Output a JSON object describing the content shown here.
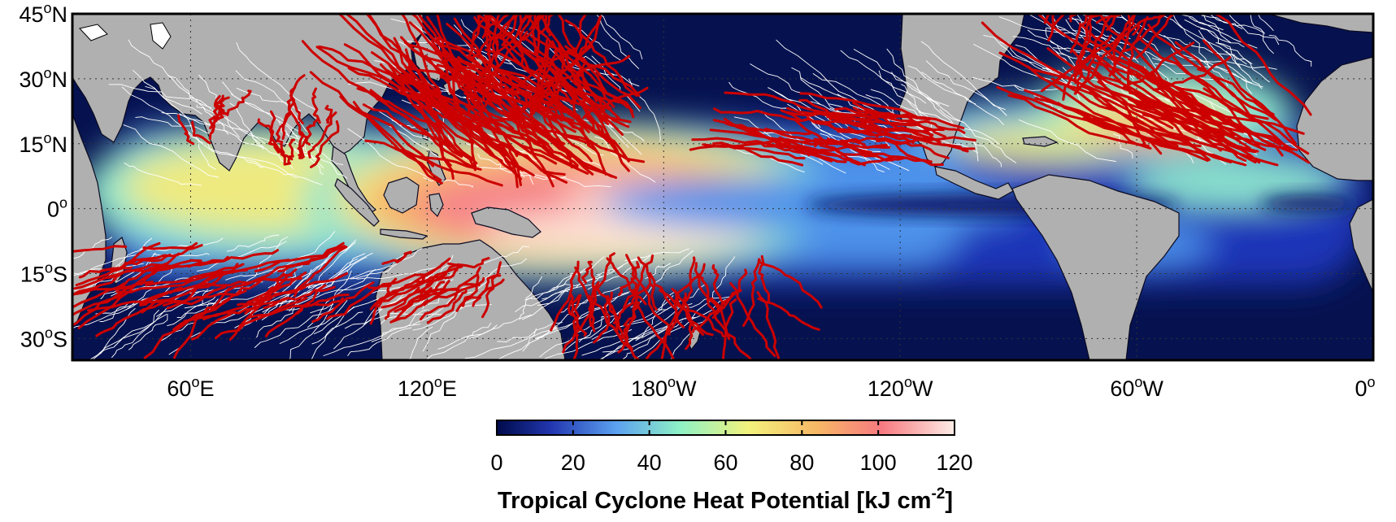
{
  "map": {
    "lat_labels": [
      {
        "deg": "45",
        "hemi": "N",
        "lat": 45
      },
      {
        "deg": "30",
        "hemi": "N",
        "lat": 30
      },
      {
        "deg": "15",
        "hemi": "N",
        "lat": 15
      },
      {
        "deg": "0",
        "hemi": "",
        "lat": 0
      },
      {
        "deg": "15",
        "hemi": "S",
        "lat": -15
      },
      {
        "deg": "30",
        "hemi": "S",
        "lat": -30
      }
    ],
    "lon_labels": [
      {
        "deg": "60",
        "hemi": "E",
        "lon": 60
      },
      {
        "deg": "120",
        "hemi": "E",
        "lon": 120
      },
      {
        "deg": "180",
        "hemi": "W",
        "lon": 180
      },
      {
        "deg": "120",
        "hemi": "W",
        "lon": 240
      },
      {
        "deg": "60",
        "hemi": "W",
        "lon": 300
      },
      {
        "deg": "0",
        "hemi": "",
        "lon": 360
      }
    ],
    "lon_range": [
      30,
      360
    ],
    "lat_range": [
      -35,
      45
    ],
    "land_color": "#b0b0b0",
    "ocean_deep_color": "#06124f",
    "major_track_color": "#cc0000",
    "minor_track_color": "#ffffff",
    "grid": "dotted"
  },
  "colorbar": {
    "ticks": [
      "0",
      "20",
      "40",
      "60",
      "80",
      "100",
      "120"
    ],
    "min": 0,
    "max": 120,
    "colormap": [
      "#000a4a",
      "#2f44c8",
      "#5fa6f2",
      "#8ef1c6",
      "#f2f27c",
      "#f7b766",
      "#f7737e",
      "#fde9e2"
    ],
    "title_main": "Tropical Cyclone Heat Potential [kJ cm",
    "title_exp": "-2",
    "title_end": "]"
  }
}
